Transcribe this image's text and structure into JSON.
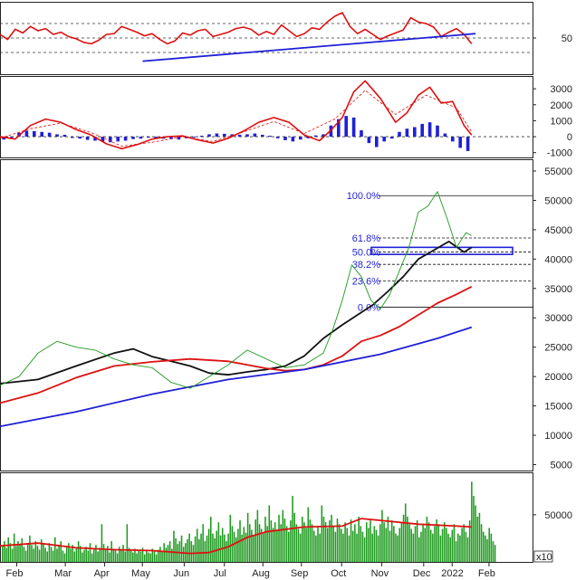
{
  "chart_data": [
    {
      "type": "line",
      "panel": "rsi",
      "ylim": [
        0,
        100
      ],
      "y_ticks": [
        {
          "value": 50,
          "label": "50"
        }
      ],
      "dashed_levels": [
        30,
        50,
        70
      ],
      "series": [
        {
          "color": "#dd1111",
          "x": [
            0,
            4,
            8,
            12,
            16,
            20,
            24,
            28,
            32,
            36,
            40,
            44,
            48,
            52,
            56,
            60,
            64,
            68,
            72,
            76,
            80,
            84,
            88,
            92,
            96,
            100,
            104,
            108,
            112,
            116,
            120,
            124,
            128,
            132,
            136,
            140,
            144,
            148,
            152,
            156,
            160,
            164,
            168,
            172,
            176,
            180,
            184,
            188,
            192,
            196,
            200,
            204,
            208,
            212,
            216,
            220,
            224,
            228,
            232,
            236,
            240,
            244,
            248
          ],
          "values": [
            55,
            48,
            62,
            57,
            66,
            60,
            63,
            55,
            58,
            52,
            49,
            44,
            42,
            47,
            55,
            56,
            66,
            62,
            58,
            53,
            56,
            48,
            42,
            46,
            57,
            54,
            60,
            62,
            52,
            55,
            58,
            63,
            65,
            62,
            54,
            59,
            55,
            68,
            60,
            52,
            56,
            64,
            62,
            72,
            80,
            85,
            66,
            56,
            62,
            55,
            48,
            53,
            57,
            61,
            78,
            72,
            70,
            65,
            52,
            58,
            63,
            55,
            42
          ]
        },
        {
          "color": "#1f1fd8",
          "x": [
            75,
            250
          ],
          "values": [
            18,
            56
          ]
        }
      ]
    },
    {
      "type": "line",
      "panel": "macd",
      "ylim": [
        -1300,
        3800
      ],
      "y_ticks": [
        {
          "value": 3000,
          "label": "3000"
        },
        {
          "value": 2000,
          "label": "2000"
        },
        {
          "value": 1000,
          "label": "1000"
        },
        {
          "value": 0,
          "label": "0"
        },
        {
          "value": -1000,
          "label": "-1000"
        }
      ],
      "dashed_levels": [
        0
      ],
      "series": [
        {
          "color": "#dd1111",
          "x": [
            0,
            8,
            16,
            24,
            32,
            40,
            48,
            56,
            64,
            72,
            80,
            88,
            96,
            104,
            112,
            120,
            128,
            136,
            144,
            152,
            160,
            168,
            174,
            180,
            186,
            192,
            200,
            208,
            214,
            220,
            226,
            232,
            238,
            244,
            248
          ],
          "values": [
            0,
            -150,
            700,
            1100,
            900,
            450,
            100,
            -450,
            -750,
            -500,
            -150,
            0,
            50,
            -200,
            -400,
            -100,
            350,
            900,
            1200,
            900,
            100,
            -250,
            400,
            1200,
            2800,
            3500,
            2400,
            900,
            1500,
            2600,
            3100,
            2100,
            2200,
            700,
            100
          ]
        },
        {
          "color": "#dd1111",
          "dash": true,
          "x": [
            0,
            16,
            32,
            48,
            64,
            80,
            96,
            112,
            128,
            144,
            160,
            176,
            192,
            208,
            224,
            240,
            248
          ],
          "values": [
            -100,
            500,
            850,
            250,
            -600,
            -350,
            0,
            -300,
            300,
            950,
            200,
            1100,
            2900,
            1400,
            2600,
            1800,
            300
          ]
        }
      ],
      "histogram": {
        "color": "#1f1fd8",
        "x": [
          2,
          6,
          10,
          14,
          18,
          22,
          26,
          30,
          34,
          38,
          42,
          46,
          50,
          54,
          58,
          62,
          66,
          70,
          74,
          78,
          82,
          86,
          90,
          94,
          98,
          102,
          106,
          110,
          114,
          118,
          122,
          126,
          130,
          134,
          138,
          142,
          146,
          150,
          154,
          158,
          162,
          166,
          170,
          174,
          178,
          182,
          186,
          190,
          194,
          198,
          202,
          206,
          210,
          214,
          218,
          222,
          226,
          230,
          234,
          238,
          242,
          246
        ],
        "values": [
          -180,
          -120,
          250,
          380,
          350,
          300,
          250,
          150,
          120,
          -80,
          -120,
          -200,
          -250,
          -300,
          -350,
          -300,
          -250,
          -150,
          -120,
          -60,
          -100,
          -130,
          -150,
          -180,
          -100,
          -60,
          60,
          150,
          200,
          180,
          150,
          120,
          150,
          200,
          120,
          60,
          -100,
          -220,
          -300,
          -180,
          -100,
          80,
          150,
          700,
          1100,
          1300,
          1200,
          400,
          -400,
          -650,
          -300,
          -120,
          300,
          500,
          600,
          800,
          900,
          700,
          200,
          -300,
          -700,
          -900
        ]
      }
    },
    {
      "type": "line",
      "panel": "price",
      "ylim": [
        4000,
        57000
      ],
      "y_ticks": [
        {
          "value": 55000,
          "label": "55000"
        },
        {
          "value": 50000,
          "label": "50000"
        },
        {
          "value": 45000,
          "label": "45000"
        },
        {
          "value": 40000,
          "label": "40000"
        },
        {
          "value": 35000,
          "label": "35000"
        },
        {
          "value": 30000,
          "label": "30000"
        },
        {
          "value": 25000,
          "label": "25000"
        },
        {
          "value": 20000,
          "label": "20000"
        },
        {
          "value": 15000,
          "label": "15000"
        },
        {
          "value": 10000,
          "label": "10000"
        },
        {
          "value": 5000,
          "label": "5000"
        }
      ],
      "fibonacci": [
        {
          "label": "100.0%",
          "value": 50800
        },
        {
          "label": "61.8%",
          "value": 43600
        },
        {
          "label": "50.0%",
          "value": 41200
        },
        {
          "label": "38.2%",
          "value": 39100
        },
        {
          "label": "23.6%",
          "value": 36300
        },
        {
          "label": "0.0%",
          "value": 31800
        }
      ],
      "series": [
        {
          "color": "#111111",
          "x": [
            0,
            20,
            40,
            60,
            70,
            80,
            90,
            100,
            110,
            120,
            130,
            140,
            150,
            160,
            170,
            180,
            188,
            196,
            204,
            212,
            220,
            228,
            236,
            244,
            248
          ],
          "values": [
            18800,
            19500,
            21800,
            24000,
            24700,
            23400,
            22600,
            21800,
            20600,
            20300,
            20800,
            21200,
            21800,
            23500,
            26500,
            28800,
            30500,
            32200,
            34500,
            37000,
            40000,
            41500,
            43000,
            41200,
            42000
          ]
        },
        {
          "color": "#dd1111",
          "x": [
            0,
            20,
            40,
            60,
            80,
            100,
            120,
            140,
            150,
            160,
            170,
            180,
            190,
            200,
            210,
            220,
            230,
            240,
            248
          ],
          "values": [
            15500,
            17200,
            19800,
            21800,
            22500,
            23000,
            22600,
            21400,
            21000,
            21200,
            22000,
            23500,
            26000,
            27000,
            28500,
            30500,
            32500,
            34000,
            35300
          ]
        },
        {
          "color": "#1f1fd8",
          "x": [
            0,
            40,
            80,
            120,
            160,
            200,
            230,
            248
          ],
          "values": [
            11500,
            14000,
            17000,
            19500,
            21200,
            23800,
            26500,
            28400
          ]
        },
        {
          "color": "#1f9a1f",
          "x": [
            0,
            10,
            20,
            30,
            40,
            50,
            60,
            70,
            80,
            90,
            100,
            110,
            120,
            130,
            140,
            150,
            160,
            170,
            175,
            180,
            185,
            190,
            195,
            200,
            205,
            210,
            215,
            220,
            225,
            230,
            235,
            240,
            245,
            248
          ],
          "values": [
            18500,
            20000,
            24000,
            26000,
            25000,
            24500,
            23000,
            22000,
            21500,
            19000,
            18000,
            20000,
            22000,
            24500,
            23000,
            21500,
            22000,
            24000,
            28000,
            33000,
            39000,
            37000,
            33000,
            31500,
            34000,
            38000,
            42000,
            48000,
            49000,
            51500,
            47000,
            42000,
            44500,
            44000
          ]
        }
      ]
    },
    {
      "type": "bar",
      "panel": "volume",
      "ylim": [
        0,
        95000
      ],
      "y_ticks": [
        {
          "value": 50000,
          "label": "50000"
        }
      ],
      "unit_badge": "x10",
      "x_labels": [
        "Feb",
        "Mar",
        "Apr",
        "May",
        "Jun",
        "Jul",
        "Aug",
        "Sep",
        "Oct",
        "Nov",
        "Dec",
        "2022",
        "Feb"
      ],
      "volume_ma": {
        "color": "#dd1111",
        "x": [
          0,
          20,
          40,
          60,
          80,
          100,
          110,
          120,
          130,
          140,
          160,
          180,
          190,
          200,
          220,
          240,
          248
        ],
        "values": [
          17000,
          20000,
          15000,
          13000,
          12000,
          9000,
          10000,
          16000,
          26000,
          32000,
          37000,
          38000,
          46000,
          44000,
          40000,
          38000,
          37000
        ]
      },
      "bars": {
        "color": "#1f9a1f",
        "values": [
          18,
          22,
          15,
          26,
          20,
          14,
          30,
          17,
          22,
          19,
          25,
          16,
          12,
          20,
          28,
          18,
          14,
          22,
          17,
          13,
          24,
          19,
          15,
          11,
          20,
          16,
          12,
          26,
          14,
          18,
          22,
          12,
          9,
          16,
          20,
          14,
          18,
          11,
          15,
          22,
          17,
          10,
          13,
          16,
          12,
          20,
          9,
          14,
          18,
          11,
          15,
          40,
          19,
          13,
          17,
          10,
          22,
          14,
          12,
          9,
          16,
          13,
          18,
          11,
          40,
          15,
          12,
          10,
          14,
          9,
          13,
          11,
          15,
          8,
          12,
          10,
          9,
          14,
          11,
          8,
          13,
          16,
          12,
          20,
          15,
          18,
          22,
          14,
          33,
          25,
          19,
          22,
          28,
          16,
          20,
          24,
          30,
          22,
          18,
          27,
          35,
          24,
          30,
          40,
          22,
          28,
          35,
          48,
          30,
          25,
          33,
          42,
          28,
          36,
          29,
          22,
          30,
          50,
          38,
          32,
          26,
          35,
          44,
          29,
          37,
          31,
          52,
          40,
          34,
          28,
          45,
          55,
          40,
          35,
          30,
          48,
          38,
          60,
          44,
          36,
          42,
          33,
          50,
          40,
          55,
          46,
          38,
          32,
          44,
          70,
          52,
          40,
          35,
          30,
          48,
          42,
          36,
          58,
          45,
          40,
          33,
          28,
          38,
          30,
          60,
          48,
          42,
          36,
          44,
          50,
          38,
          32,
          46,
          40,
          35,
          30,
          42,
          36,
          28,
          45,
          33,
          40,
          30,
          48,
          38,
          32,
          26,
          42,
          36,
          44,
          30,
          38,
          34,
          28,
          40,
          55,
          42,
          36,
          48,
          33,
          44,
          38,
          30,
          28,
          36,
          42,
          50,
          62,
          48,
          40,
          35,
          30,
          38,
          44,
          26,
          32,
          40,
          36,
          48,
          42,
          34,
          30,
          38,
          45,
          40,
          28,
          35,
          42,
          36,
          30,
          26,
          34,
          40,
          22,
          30,
          28,
          36,
          40,
          32,
          26,
          44,
          85,
          70,
          60,
          48,
          52,
          40,
          32,
          28,
          24,
          36,
          30,
          22,
          18
        ]
      }
    }
  ]
}
